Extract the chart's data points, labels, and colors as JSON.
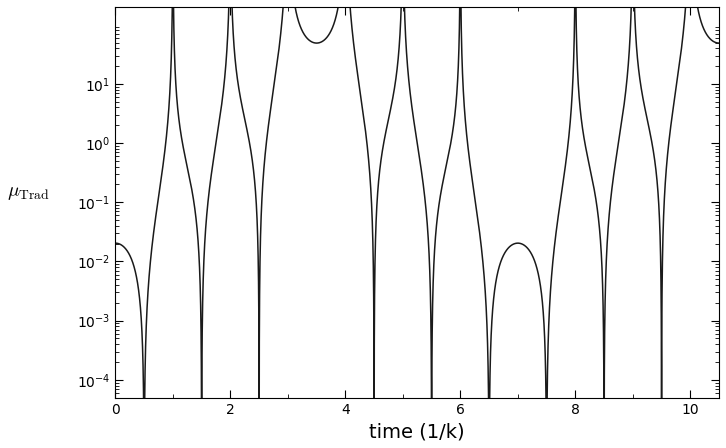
{
  "xlabel": "time (1/k)",
  "ylabel": "$\\mu_{\\mathrm{Trad}}$",
  "xlim": [
    0,
    10.5
  ],
  "ylim": [
    5e-05,
    200
  ],
  "yticks": [
    0.0001,
    0.001,
    0.01,
    0.1,
    1.0,
    10.0
  ],
  "xticks": [
    0,
    2,
    4,
    6,
    8,
    10
  ],
  "line_color": "#1a1a1a",
  "line_width": 1.1,
  "n_points": 800000,
  "omega1": 3.14159265358979,
  "omega2": 2.74889357189,
  "figsize": [
    7.26,
    4.48
  ],
  "dpi": 100
}
